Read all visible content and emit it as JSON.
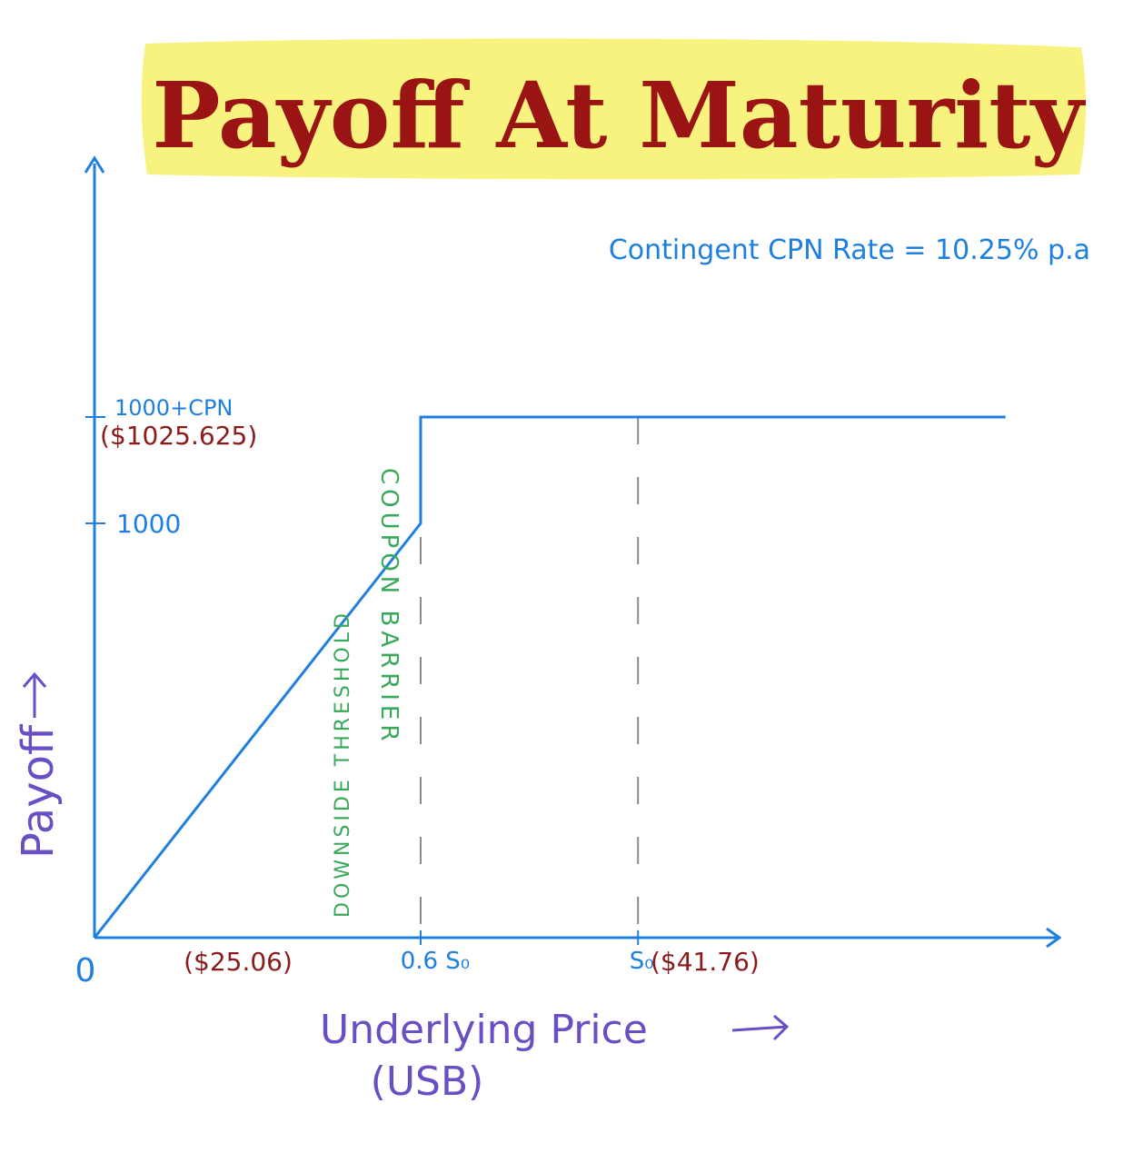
{
  "chart_data": {
    "type": "line",
    "title": "Payoff At Maturity",
    "subtitle": "Contingent CPN Rate = 10.25% p.a",
    "xlabel": "Underlying Price",
    "xlabel_sub": "(USB)",
    "ylabel": "Payoff",
    "series": [
      {
        "points": [
          {
            "x": 0,
            "y": 0
          },
          {
            "x": 25.06,
            "y": 1000
          },
          {
            "x": 25.06,
            "y": 1025.625
          },
          {
            "x": 70,
            "y": 1025.625
          }
        ]
      }
    ],
    "xlim": [
      0,
      74
    ],
    "ylim": [
      0,
      1100
    ],
    "x_ticks": [
      {
        "value": 0,
        "label": "0"
      },
      {
        "value": 25.06,
        "label": "0.6 S₀"
      },
      {
        "value": 41.76,
        "label": "S₀"
      }
    ],
    "x_tick_notes": [
      {
        "value": 12.5,
        "label": "($25.06)"
      },
      {
        "value": 53,
        "label": "($41.76)"
      }
    ],
    "y_ticks": [
      {
        "value": 1000,
        "label": "1000"
      },
      {
        "value": 1025.625,
        "label": "1000+CPN",
        "sublabel": "($1025.625)"
      }
    ],
    "reference_lines": [
      {
        "x": 25.06,
        "style": "dashed"
      },
      {
        "x": 41.76,
        "style": "dashed"
      }
    ],
    "annotations": [
      {
        "label": "COUPON BARRIER"
      },
      {
        "label": "DOWNSIDE THRESHOLD"
      }
    ],
    "grid": false,
    "legend": "none"
  },
  "colors": {
    "axis": "#1f7fe0",
    "line": "#1f7fe0",
    "title_text": "#9b1414",
    "title_highlight": "#f8f27e",
    "price_note": "#8b1a1a",
    "annotation": "#3aa85a",
    "axis_label": "#6a4fc4",
    "dashed": "#8a8a8a"
  }
}
